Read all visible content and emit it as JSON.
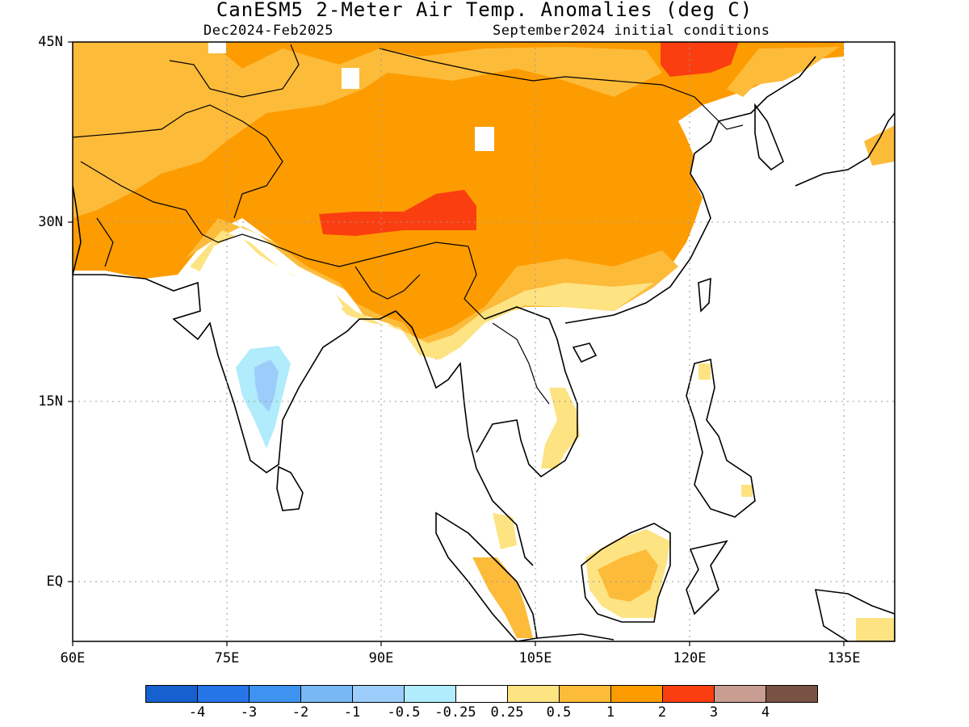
{
  "header": {
    "title": "CanESM5 2-Meter Air Temp. Anomalies (deg C)",
    "period": "Dec2024-Feb2025",
    "initial_conditions": "September2024 initial conditions"
  },
  "map": {
    "region": {
      "lon_range": [
        60,
        140
      ],
      "lat_range": [
        -5,
        45
      ]
    },
    "lat_ticks": [
      "45N",
      "30N",
      "15N",
      "EQ"
    ],
    "lon_ticks": [
      "60E",
      "75E",
      "90E",
      "105E",
      "120E",
      "135E"
    ],
    "gridlines": "dotted",
    "land_outline": "black coastlines and country borders"
  },
  "colorbar": {
    "colors": [
      "#1660d0",
      "#2575e8",
      "#3e93f0",
      "#78b8f5",
      "#9ccdfa",
      "#b0ecfb",
      "#ffffff",
      "#fde382",
      "#fdbb3a",
      "#fd9c00",
      "#fa3e10",
      "#c99d91",
      "#7a5244"
    ],
    "labels": [
      "-4",
      "-3",
      "-2",
      "-1",
      "-0.5",
      "-0.25",
      "0.25",
      "0.5",
      "1",
      "2",
      "3",
      "4"
    ]
  }
}
